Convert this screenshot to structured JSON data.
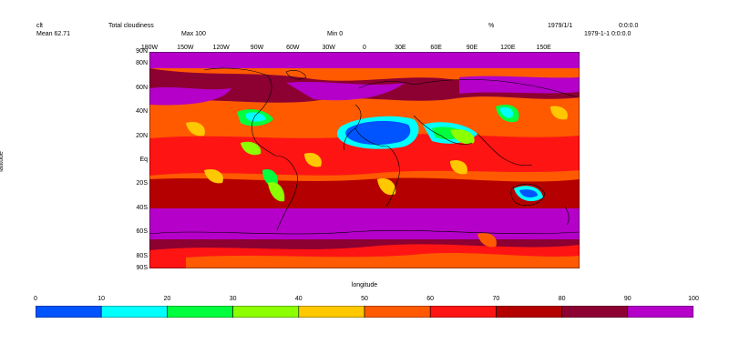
{
  "header": {
    "variable": "clt",
    "long_name": "Total cloudiness",
    "units": "%",
    "date": "1979/1/1",
    "time": "0:0:0.0",
    "mean_label": "Mean 62.71",
    "max_label": "Max 100",
    "min_label": "Min 0",
    "datetime_full": "1979-1-1 0:0:0.0"
  },
  "axes": {
    "xlabel": "longitude",
    "ylabel": "latitude",
    "top_ticks": [
      "180W",
      "150W",
      "120W",
      "90W",
      "60W",
      "30W",
      "0",
      "30E",
      "60E",
      "90E",
      "120E",
      "150E"
    ],
    "left_ticks": [
      "90N",
      "80N",
      "60N",
      "40N",
      "20N",
      "Eq",
      "20S",
      "40S",
      "60S",
      "80S",
      "90S"
    ]
  },
  "colorbar": {
    "ticks": [
      "0",
      "10",
      "20",
      "30",
      "40",
      "50",
      "60",
      "70",
      "80",
      "90",
      "100"
    ],
    "colors": [
      "#0054ff",
      "#00ffff",
      "#00ff3c",
      "#8cff00",
      "#ffc800",
      "#ff5a00",
      "#ff1414",
      "#b40000",
      "#8c0032",
      "#b400c8"
    ]
  },
  "chart_data": {
    "type": "heatmap",
    "title": "Total cloudiness",
    "variable": "clt",
    "units": "%",
    "date": "1979/1/1",
    "mean": 62.71,
    "max": 100,
    "min": 0,
    "xlabel": "longitude",
    "ylabel": "latitude",
    "xlim": [
      -180,
      180
    ],
    "ylim": [
      -90,
      90
    ],
    "levels": [
      0,
      10,
      20,
      30,
      40,
      50,
      60,
      70,
      80,
      90,
      100
    ]
  }
}
